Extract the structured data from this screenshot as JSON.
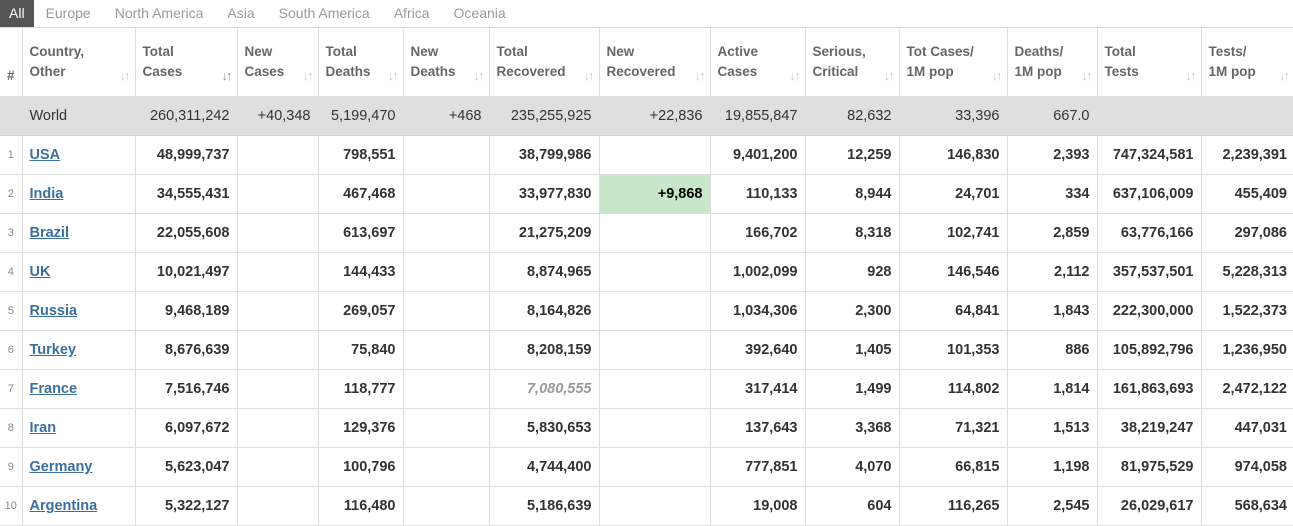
{
  "tabs": [
    "All",
    "Europe",
    "North America",
    "Asia",
    "South America",
    "Africa",
    "Oceania"
  ],
  "headers": [
    {
      "l1": "#",
      "l2": ""
    },
    {
      "l1": "Country,",
      "l2": "Other"
    },
    {
      "l1": "Total",
      "l2": "Cases"
    },
    {
      "l1": "New",
      "l2": "Cases"
    },
    {
      "l1": "Total",
      "l2": "Deaths"
    },
    {
      "l1": "New",
      "l2": "Deaths"
    },
    {
      "l1": "Total",
      "l2": "Recovered"
    },
    {
      "l1": "New",
      "l2": "Recovered"
    },
    {
      "l1": "Active",
      "l2": "Cases"
    },
    {
      "l1": "Serious,",
      "l2": "Critical"
    },
    {
      "l1": "Tot Cases/",
      "l2": "1M pop"
    },
    {
      "l1": "Deaths/",
      "l2": "1M pop"
    },
    {
      "l1": "Total",
      "l2": "Tests"
    },
    {
      "l1": "Tests/",
      "l2": "1M pop"
    }
  ],
  "world": [
    "",
    "World",
    "260,311,242",
    "+40,348",
    "5,199,470",
    "+468",
    "235,255,925",
    "+22,836",
    "19,855,847",
    "82,632",
    "33,396",
    "667.0",
    "",
    ""
  ],
  "rows": [
    [
      "1",
      "USA",
      "48,999,737",
      "",
      "798,551",
      "",
      "38,799,986",
      "",
      "9,401,200",
      "12,259",
      "146,830",
      "2,393",
      "747,324,581",
      "2,239,391"
    ],
    [
      "2",
      "India",
      "34,555,431",
      "",
      "467,468",
      "",
      "33,977,830",
      "+9,868",
      "110,133",
      "8,944",
      "24,701",
      "334",
      "637,106,009",
      "455,409"
    ],
    [
      "3",
      "Brazil",
      "22,055,608",
      "",
      "613,697",
      "",
      "21,275,209",
      "",
      "166,702",
      "8,318",
      "102,741",
      "2,859",
      "63,776,166",
      "297,086"
    ],
    [
      "4",
      "UK",
      "10,021,497",
      "",
      "144,433",
      "",
      "8,874,965",
      "",
      "1,002,099",
      "928",
      "146,546",
      "2,112",
      "357,537,501",
      "5,228,313"
    ],
    [
      "5",
      "Russia",
      "9,468,189",
      "",
      "269,057",
      "",
      "8,164,826",
      "",
      "1,034,306",
      "2,300",
      "64,841",
      "1,843",
      "222,300,000",
      "1,522,373"
    ],
    [
      "6",
      "Turkey",
      "8,676,639",
      "",
      "75,840",
      "",
      "8,208,159",
      "",
      "392,640",
      "1,405",
      "101,353",
      "886",
      "105,892,796",
      "1,236,950"
    ],
    [
      "7",
      "France",
      "7,516,746",
      "",
      "118,777",
      "",
      "7,080,555",
      "",
      "317,414",
      "1,499",
      "114,802",
      "1,814",
      "161,863,693",
      "2,472,122"
    ],
    [
      "8",
      "Iran",
      "6,097,672",
      "",
      "129,376",
      "",
      "5,830,653",
      "",
      "137,643",
      "3,368",
      "71,321",
      "1,513",
      "38,219,247",
      "447,031"
    ],
    [
      "9",
      "Germany",
      "5,623,047",
      "",
      "100,796",
      "",
      "4,744,400",
      "",
      "777,851",
      "4,070",
      "66,815",
      "1,198",
      "81,975,529",
      "974,058"
    ],
    [
      "10",
      "Argentina",
      "5,322,127",
      "",
      "116,480",
      "",
      "5,186,639",
      "",
      "19,008",
      "604",
      "116,265",
      "2,545",
      "26,029,617",
      "568,634"
    ]
  ],
  "colors": {
    "new_recovered_highlight": "#c8e6c9",
    "link": "#3b6f9f",
    "world_row_bg": "#dfdfdf",
    "active_tab_bg": "#555555"
  }
}
